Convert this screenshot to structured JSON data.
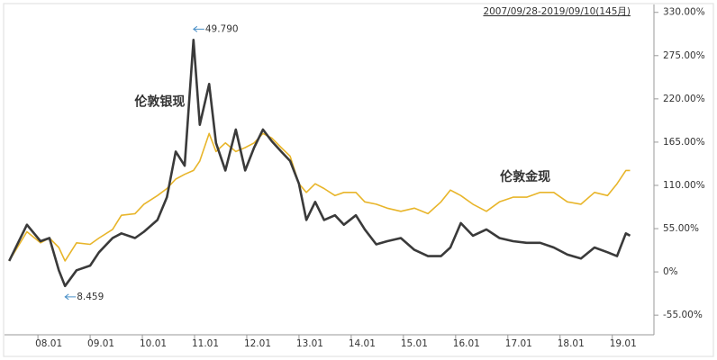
{
  "chart_data": {
    "type": "line",
    "date_range": "2007/09/28-2019/09/10(145月)",
    "annotations": [
      {
        "text": "49.790",
        "color": "#c0392b",
        "x": 2010.98,
        "y": 295
      },
      {
        "text": "8.459",
        "color": "#2e8b2e",
        "x": 2008.52,
        "y": -18
      }
    ],
    "x": [
      2007.45,
      2007.79,
      2008.05,
      2008.22,
      2008.4,
      2008.52,
      2008.74,
      2009.0,
      2009.17,
      2009.43,
      2009.6,
      2009.86,
      2010.03,
      2010.29,
      2010.47,
      2010.64,
      2010.81,
      2010.98,
      2011.1,
      2011.28,
      2011.41,
      2011.59,
      2011.79,
      2011.97,
      2012.14,
      2012.31,
      2012.48,
      2012.66,
      2012.83,
      2013.0,
      2013.14,
      2013.31,
      2013.48,
      2013.69,
      2013.86,
      2014.09,
      2014.26,
      2014.48,
      2014.69,
      2014.95,
      2015.21,
      2015.47,
      2015.72,
      2015.9,
      2016.1,
      2016.33,
      2016.59,
      2016.84,
      2017.1,
      2017.36,
      2017.62,
      2017.88,
      2018.14,
      2018.4,
      2018.66,
      2018.91,
      2019.09,
      2019.26,
      2019.34
    ],
    "series": [
      {
        "name": "伦敦金现",
        "color": "#e8b52a",
        "width": 1.6,
        "label_pos": [
          2016.85,
          120
        ],
        "values": [
          14,
          51,
          37,
          43,
          31,
          14,
          37,
          35,
          43,
          54,
          72,
          74,
          86,
          97,
          106,
          118,
          124,
          129,
          141,
          176,
          153,
          164,
          153,
          158,
          164,
          176,
          170,
          158,
          147,
          112,
          101,
          112,
          106,
          97,
          101,
          101,
          89,
          86,
          81,
          77,
          81,
          74,
          89,
          104,
          97,
          86,
          77,
          89,
          95,
          95,
          101,
          101,
          89,
          86,
          101,
          97,
          112,
          129,
          129
        ]
      },
      {
        "name": "伦敦银现",
        "color": "#3a3a3a",
        "width": 2.6,
        "label_pos": [
          2009.85,
          216
        ],
        "values": [
          14,
          60,
          39,
          43,
          2,
          -18,
          2,
          8,
          25,
          43,
          49,
          43,
          51,
          66,
          95,
          153,
          135,
          295,
          187,
          239,
          164,
          129,
          181,
          129,
          158,
          181,
          166,
          153,
          141,
          112,
          66,
          89,
          66,
          72,
          60,
          72,
          54,
          35,
          39,
          43,
          28,
          20,
          20,
          31,
          62,
          46,
          54,
          43,
          39,
          37,
          37,
          31,
          22,
          17,
          31,
          25,
          20,
          49,
          46
        ]
      }
    ],
    "xlim": [
      2007.36,
      2019.66
    ],
    "xticks": [
      {
        "value": 2008,
        "label": "08.01"
      },
      {
        "value": 2009,
        "label": "09.01"
      },
      {
        "value": 2010,
        "label": "10.01"
      },
      {
        "value": 2011,
        "label": "11.01"
      },
      {
        "value": 2012,
        "label": "12.01"
      },
      {
        "value": 2013,
        "label": "13.01"
      },
      {
        "value": 2014,
        "label": "14.01"
      },
      {
        "value": 2015,
        "label": "15.01"
      },
      {
        "value": 2016,
        "label": "16.01"
      },
      {
        "value": 2017,
        "label": "17.01"
      },
      {
        "value": 2018,
        "label": "18.01"
      },
      {
        "value": 2019,
        "label": "19.01"
      }
    ],
    "ylim": [
      -80,
      340
    ],
    "yticks": [
      {
        "value": -55,
        "label": "-55.00%"
      },
      {
        "value": 0,
        "label": "0%"
      },
      {
        "value": 55,
        "label": "55.00%"
      },
      {
        "value": 110,
        "label": "110.00%"
      },
      {
        "value": 165,
        "label": "165.00%"
      },
      {
        "value": 220,
        "label": "220.00%"
      },
      {
        "value": 275,
        "label": "275.00%"
      },
      {
        "value": 330,
        "label": "330.00%"
      }
    ]
  }
}
